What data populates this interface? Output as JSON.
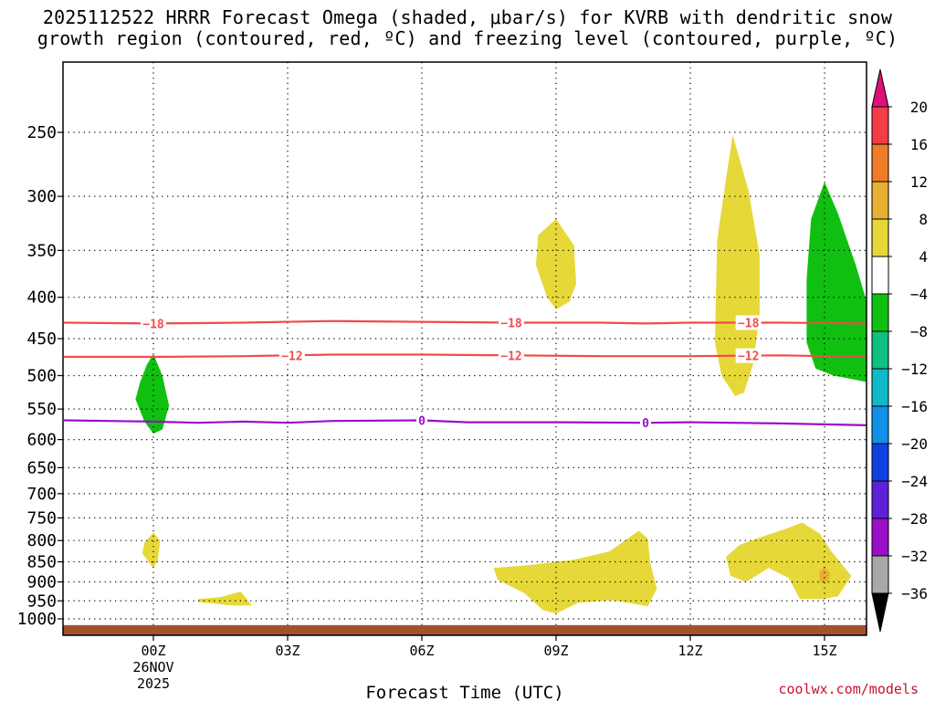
{
  "title": {
    "line1": "2025112522 HRRR Forecast Omega (shaded, μbar/s) for KVRB with dendritic snow",
    "line2": "growth region (contoured, red, ºC) and freezing level (contoured, purple, ºC)"
  },
  "watermark": "coolwx.com/models",
  "chart_data": {
    "type": "contour",
    "title": "2025112522 HRRR Forecast Omega (shaded, μbar/s) for KVRB with dendritic snow growth region (contoured, red, ºC) and freezing level (contoured, purple, ºC)",
    "xlabel": "Forecast Time (UTC)",
    "x_ticks": [
      {
        "hour": 0,
        "label": "00Z",
        "sublabel1": "26NOV",
        "sublabel2": "2025"
      },
      {
        "hour": 3,
        "label": "03Z"
      },
      {
        "hour": 6,
        "label": "06Z"
      },
      {
        "hour": 9,
        "label": "09Z"
      },
      {
        "hour": 12,
        "label": "12Z"
      },
      {
        "hour": 15,
        "label": "15Z"
      }
    ],
    "xlim": [
      -2,
      16
    ],
    "y_ticks": [
      250,
      300,
      350,
      400,
      450,
      500,
      550,
      600,
      650,
      700,
      750,
      800,
      850,
      900,
      950,
      1000
    ],
    "ylim_hPa": [
      1040,
      200
    ],
    "grid": true,
    "colorbar": {
      "labels": [
        "20",
        "16",
        "12",
        "8",
        "4",
        "−4",
        "−8",
        "−12",
        "−16",
        "−20",
        "−24",
        "−28",
        "−32",
        "−36"
      ],
      "colors": [
        "#f23c46",
        "#f07c28",
        "#e8b030",
        "#e6d838",
        "#ffffff",
        "#10c010",
        "#10c080",
        "#10b8c8",
        "#1090e8",
        "#1040e0",
        "#6020d8",
        "#9a10c8",
        "#a8a8a8"
      ],
      "top_arrow_color": "#e0107a",
      "bottom_arrow_color": "#000000"
    },
    "contours": [
      {
        "name": "-18",
        "color": "#f24a4a",
        "type": "dgz",
        "points": [
          [
            -2,
            430
          ],
          [
            0,
            431
          ],
          [
            2,
            430
          ],
          [
            4,
            428
          ],
          [
            6,
            429
          ],
          [
            8,
            430
          ],
          [
            10,
            430
          ],
          [
            11,
            431
          ],
          [
            12,
            430
          ],
          [
            14,
            430
          ],
          [
            16,
            431
          ]
        ],
        "labels": [
          {
            "x": 0,
            "text": "−18"
          },
          {
            "x": 8,
            "text": "−18"
          },
          {
            "x": 13.3,
            "text": "−18"
          }
        ]
      },
      {
        "name": "-12",
        "color": "#f24a4a",
        "type": "dgz",
        "points": [
          [
            -2,
            474
          ],
          [
            0,
            474
          ],
          [
            2,
            473
          ],
          [
            4,
            471
          ],
          [
            6,
            471
          ],
          [
            8,
            472
          ],
          [
            10,
            473
          ],
          [
            12,
            473
          ],
          [
            14,
            472
          ],
          [
            16,
            474
          ]
        ],
        "labels": [
          {
            "x": 3.1,
            "text": "−12"
          },
          {
            "x": 8,
            "text": "−12"
          },
          {
            "x": 13.3,
            "text": "−12"
          }
        ]
      },
      {
        "name": "0",
        "color": "#9a10c8",
        "type": "freezing",
        "points": [
          [
            -2,
            568
          ],
          [
            0,
            570
          ],
          [
            1,
            572
          ],
          [
            2,
            570
          ],
          [
            3,
            572
          ],
          [
            4,
            569
          ],
          [
            6,
            568
          ],
          [
            7,
            571
          ],
          [
            9,
            571
          ],
          [
            11,
            572
          ],
          [
            12,
            571
          ],
          [
            14,
            573
          ],
          [
            16,
            576
          ]
        ],
        "labels": [
          {
            "x": 6,
            "text": "0"
          },
          {
            "x": 11,
            "text": "0"
          }
        ]
      }
    ],
    "shaded_regions": [
      {
        "color": "#10c010",
        "value": "-8 to -4",
        "points": [
          [
            0,
            470
          ],
          [
            0.2,
            500
          ],
          [
            0.35,
            545
          ],
          [
            0.2,
            583
          ],
          [
            0,
            590
          ],
          [
            -0.2,
            570
          ],
          [
            -0.4,
            535
          ],
          [
            -0.3,
            510
          ],
          [
            -0.15,
            485
          ]
        ]
      },
      {
        "color": "#e6d838",
        "value": "4 to 8",
        "points": [
          [
            9,
            320
          ],
          [
            9.4,
            345
          ],
          [
            9.45,
            385
          ],
          [
            9.3,
            405
          ],
          [
            9,
            414
          ],
          [
            8.8,
            400
          ],
          [
            8.55,
            365
          ],
          [
            8.6,
            335
          ]
        ]
      },
      {
        "color": "#e6d838",
        "value": "4 to 8",
        "points": [
          [
            12.95,
            252
          ],
          [
            13.3,
            295
          ],
          [
            13.55,
            355
          ],
          [
            13.55,
            420
          ],
          [
            13.4,
            485
          ],
          [
            13.2,
            525
          ],
          [
            13,
            530
          ],
          [
            12.7,
            500
          ],
          [
            12.55,
            455
          ],
          [
            12.6,
            340
          ],
          [
            12.8,
            285
          ]
        ]
      },
      {
        "color": "#10c010",
        "value": "-8 to -4",
        "points": [
          [
            15.0,
            288
          ],
          [
            15.3,
            315
          ],
          [
            15.7,
            365
          ],
          [
            16,
            415
          ],
          [
            16,
            510
          ],
          [
            15.6,
            505
          ],
          [
            15.2,
            500
          ],
          [
            14.8,
            490
          ],
          [
            14.6,
            455
          ],
          [
            14.6,
            380
          ],
          [
            14.7,
            320
          ]
        ]
      },
      {
        "color": "#e6d838",
        "value": "4 to 8",
        "points": [
          [
            -0.2,
            805
          ],
          [
            0,
            782
          ],
          [
            0.15,
            800
          ],
          [
            0.1,
            845
          ],
          [
            0,
            865
          ],
          [
            -0.25,
            830
          ]
        ]
      },
      {
        "color": "#e6d838",
        "value": "4 to 8",
        "points": [
          [
            1,
            945
          ],
          [
            1.5,
            940
          ],
          [
            1.95,
            925
          ],
          [
            2.2,
            962
          ],
          [
            1.8,
            963
          ],
          [
            1,
            953
          ]
        ]
      },
      {
        "color": "#e6d838",
        "value": "4 to 8",
        "points": [
          [
            7.6,
            865
          ],
          [
            8.4,
            858
          ],
          [
            9.4,
            845
          ],
          [
            10.2,
            825
          ],
          [
            10.85,
            778
          ],
          [
            11.05,
            795
          ],
          [
            11.1,
            850
          ],
          [
            11.25,
            918
          ],
          [
            11.05,
            965
          ],
          [
            10.6,
            955
          ],
          [
            10.25,
            948
          ],
          [
            9.5,
            955
          ],
          [
            9,
            985
          ],
          [
            8.7,
            975
          ],
          [
            8.3,
            930
          ],
          [
            7.7,
            895
          ]
        ]
      },
      {
        "color": "#e6d838",
        "value": "4 to 8",
        "points": [
          [
            12.8,
            838
          ],
          [
            13.1,
            810
          ],
          [
            13.5,
            795
          ],
          [
            14.1,
            775
          ],
          [
            14.5,
            760
          ],
          [
            14.9,
            785
          ],
          [
            15.15,
            825
          ],
          [
            15.6,
            885
          ],
          [
            15.3,
            938
          ],
          [
            14.95,
            945
          ],
          [
            14.45,
            945
          ],
          [
            14.2,
            890
          ],
          [
            13.75,
            865
          ],
          [
            13.25,
            900
          ],
          [
            12.9,
            885
          ]
        ]
      },
      {
        "color": "#e8b030",
        "value": "8 to 12",
        "points": [
          [
            15,
            862
          ],
          [
            15.12,
            878
          ],
          [
            15.08,
            900
          ],
          [
            14.9,
            900
          ],
          [
            14.88,
            875
          ]
        ]
      }
    ],
    "terrain": {
      "color": "#a0522d",
      "surface_hPa": 1018
    }
  }
}
